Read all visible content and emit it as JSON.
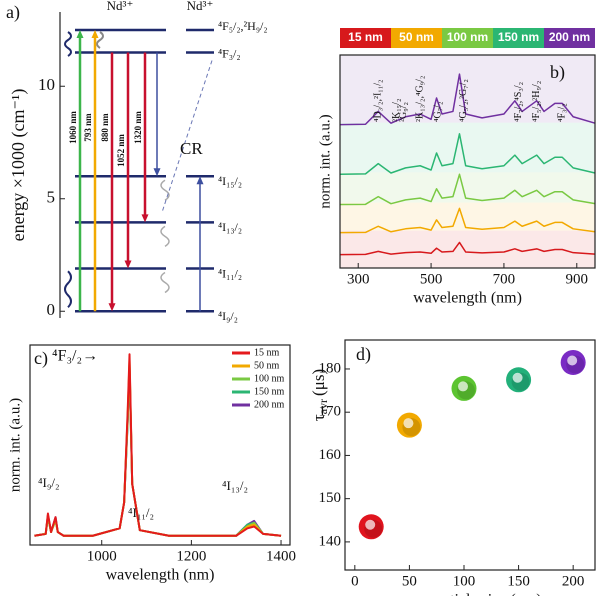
{
  "chart_data": [
    {
      "type": "energy-diagram",
      "panel": "a)",
      "ylabel": "energy ×1000 (cm⁻¹)",
      "ylim": [
        -0.3,
        13.3
      ],
      "yticks": [
        0,
        5,
        10
      ],
      "species": [
        "Nd³⁺",
        "Nd³⁺"
      ],
      "levels": [
        {
          "label": "⁴F₅/₂,²H₉/₂",
          "energy": 12.5
        },
        {
          "label": "⁴F₃/₂",
          "energy": 11.5
        },
        {
          "label": "⁴I₁₅/₂",
          "energy": 6.0
        },
        {
          "label": "⁴I₁₃/₂",
          "energy": 3.95
        },
        {
          "label": "⁴I₁₁/₂",
          "energy": 1.9
        },
        {
          "label": "⁴I₉/₂",
          "energy": 0
        }
      ],
      "transitions": [
        {
          "label": "1060 nm",
          "color": "#3cb54a"
        },
        {
          "label": "793 nm",
          "color": "#f2a900"
        },
        {
          "label": "880 nm",
          "color": "#c8102e"
        },
        {
          "label": "1052 nm",
          "color": "#c8102e"
        },
        {
          "label": "1320 nm",
          "color": "#c8102e"
        }
      ],
      "annotation": "CR"
    },
    {
      "type": "line",
      "panel": "b)",
      "xlabel": "wavelength (nm)",
      "ylabel": "norm. int. (a.u.)",
      "xlim": [
        250,
        950
      ],
      "xticks": [
        300,
        500,
        700,
        900
      ],
      "ylim": [
        0,
        1
      ],
      "x": [
        250,
        320,
        355,
        390,
        430,
        470,
        500,
        515,
        530,
        560,
        578,
        595,
        640,
        700,
        730,
        750,
        790,
        810,
        840,
        860,
        890,
        950
      ],
      "series": [
        {
          "name": "15 nm",
          "color": "#d7191c",
          "values": [
            0.063,
            0.064,
            0.078,
            0.065,
            0.072,
            0.075,
            0.069,
            0.093,
            0.075,
            0.078,
            0.12,
            0.075,
            0.071,
            0.075,
            0.09,
            0.078,
            0.09,
            0.078,
            0.087,
            0.087,
            0.072,
            0.065
          ]
        },
        {
          "name": "50 nm",
          "color": "#f2a900",
          "values": [
            0.166,
            0.167,
            0.196,
            0.17,
            0.184,
            0.19,
            0.178,
            0.226,
            0.19,
            0.196,
            0.28,
            0.19,
            0.182,
            0.19,
            0.22,
            0.196,
            0.22,
            0.196,
            0.214,
            0.214,
            0.184,
            0.17
          ]
        },
        {
          "name": "100 nm",
          "color": "#7ac943",
          "values": [
            0.298,
            0.299,
            0.335,
            0.302,
            0.32,
            0.328,
            0.312,
            0.372,
            0.328,
            0.335,
            0.44,
            0.328,
            0.317,
            0.328,
            0.365,
            0.335,
            0.365,
            0.335,
            0.358,
            0.358,
            0.32,
            0.302
          ]
        },
        {
          "name": "150 nm",
          "color": "#2bb673",
          "values": [
            0.44,
            0.442,
            0.49,
            0.446,
            0.47,
            0.48,
            0.46,
            0.54,
            0.48,
            0.49,
            0.63,
            0.48,
            0.466,
            0.48,
            0.53,
            0.49,
            0.53,
            0.49,
            0.52,
            0.52,
            0.47,
            0.446
          ]
        },
        {
          "name": "200 nm",
          "color": "#7030a0",
          "values": [
            0.673,
            0.675,
            0.735,
            0.68,
            0.71,
            0.723,
            0.698,
            0.798,
            0.723,
            0.735,
            0.91,
            0.723,
            0.705,
            0.723,
            0.785,
            0.735,
            0.785,
            0.735,
            0.773,
            0.773,
            0.71,
            0.68
          ]
        }
      ],
      "annotations": [
        {
          "text": "⁴D₃/₂,²I₁₁/₂",
          "x": 355
        },
        {
          "text": "²K₁₅/₂",
          "x": 405
        },
        {
          "text": "²G₉/₂",
          "x": 425
        },
        {
          "text": "²K₁₃/₂,⁴G₉/₂",
          "x": 470
        },
        {
          "text": "⁴G₇/₂",
          "x": 520
        },
        {
          "text": "⁴G₅/₂,²G₇/₂",
          "x": 590
        },
        {
          "text": "⁴F₇/₂,⁴S₃/₂",
          "x": 740
        },
        {
          "text": "⁴F₅/₂,²H₉/₂",
          "x": 790
        },
        {
          "text": "⁴F₃/₂",
          "x": 860
        }
      ]
    },
    {
      "type": "line",
      "panel": "c)",
      "xlabel": "wavelength (nm)",
      "ylabel": "norm. int. (a.u.)",
      "xlim": [
        840,
        1420
      ],
      "xticks": [
        1000,
        1200,
        1400
      ],
      "ylim": [
        -0.03,
        1.05
      ],
      "x": [
        850,
        875,
        880,
        887,
        897,
        902,
        915,
        980,
        1040,
        1050,
        1058,
        1062,
        1068,
        1085,
        1150,
        1300,
        1325,
        1340,
        1360,
        1400
      ],
      "series": [
        {
          "name": "200 nm",
          "color": "#7030a0",
          "values": [
            0.02,
            0.03,
            0.13,
            0.04,
            0.12,
            0.04,
            0.02,
            0.02,
            0.06,
            0.2,
            0.64,
            0.92,
            0.3,
            0.05,
            0.02,
            0.02,
            0.08,
            0.1,
            0.03,
            0.02
          ]
        },
        {
          "name": "150 nm",
          "color": "#2bb673",
          "values": [
            0.02,
            0.03,
            0.12,
            0.04,
            0.11,
            0.04,
            0.02,
            0.02,
            0.06,
            0.2,
            0.65,
            0.93,
            0.3,
            0.05,
            0.02,
            0.02,
            0.08,
            0.09,
            0.03,
            0.02
          ]
        },
        {
          "name": "100 nm",
          "color": "#7ac943",
          "values": [
            0.02,
            0.03,
            0.12,
            0.04,
            0.1,
            0.04,
            0.02,
            0.02,
            0.06,
            0.2,
            0.66,
            0.95,
            0.3,
            0.05,
            0.02,
            0.02,
            0.07,
            0.09,
            0.03,
            0.02
          ]
        },
        {
          "name": "50 nm",
          "color": "#f2a900",
          "values": [
            0.02,
            0.03,
            0.13,
            0.04,
            0.11,
            0.04,
            0.02,
            0.02,
            0.06,
            0.2,
            0.68,
            0.97,
            0.3,
            0.05,
            0.02,
            0.02,
            0.07,
            0.08,
            0.03,
            0.02
          ]
        },
        {
          "name": "15 nm",
          "color": "#e41a1c",
          "values": [
            0.02,
            0.03,
            0.14,
            0.04,
            0.12,
            0.04,
            0.02,
            0.02,
            0.06,
            0.2,
            0.7,
            1.0,
            0.3,
            0.05,
            0.02,
            0.02,
            0.06,
            0.07,
            0.03,
            0.02
          ]
        }
      ],
      "annotations": [
        "⁴F₃/₂→",
        "⁴I₉/₂",
        "⁴I₁₁/₂",
        "⁴I₁₃/₂"
      ]
    },
    {
      "type": "scatter",
      "panel": "d)",
      "xlabel": "nanoparticle size (nm)",
      "ylabel": {
        "symbol": "τ",
        "subscript": "avr",
        "unit": "(μs)"
      },
      "xlim": [
        -9,
        220
      ],
      "xticks": [
        0,
        50,
        100,
        150,
        200
      ],
      "ylim": [
        133.5,
        186.7
      ],
      "yticks": [
        140,
        150,
        160,
        170,
        180
      ],
      "x": [
        15,
        50,
        100,
        150,
        200
      ],
      "values": [
        143.5,
        167,
        175.5,
        177.5,
        181.5
      ],
      "colors": [
        "#e0141e",
        "#f2a900",
        "#5cc431",
        "#22b07a",
        "#7a2bc4"
      ]
    }
  ]
}
